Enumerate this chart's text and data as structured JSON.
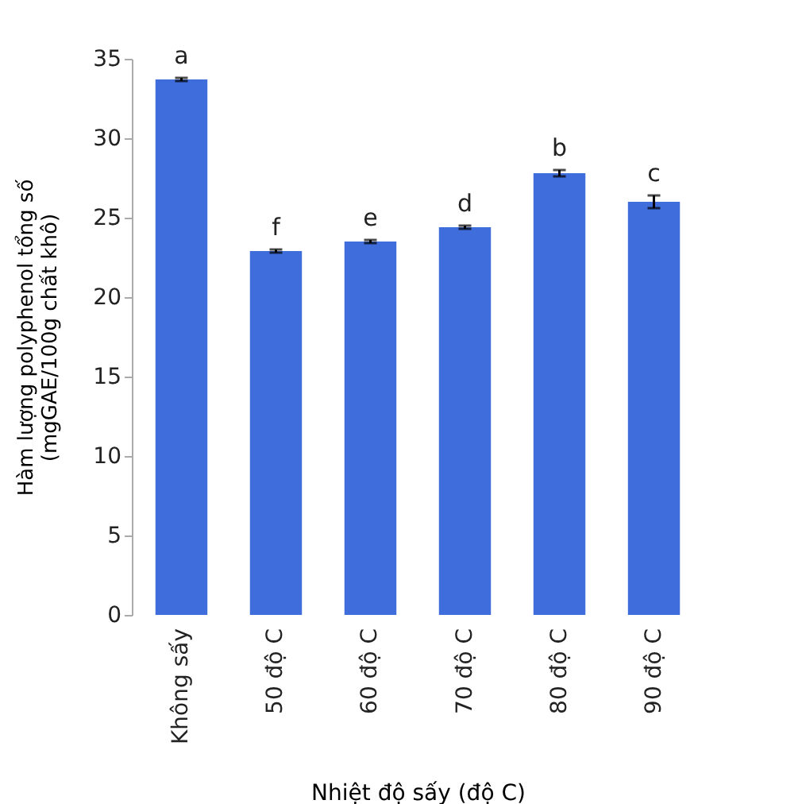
{
  "chart_data": {
    "type": "bar",
    "xlabel": "Nhiệt độ sấy (độ C)",
    "ylabel": [
      "Hàm lượng polyphenol tổng số",
      "(mgGAE/100g chất khô)"
    ],
    "categories": [
      "Không sấy",
      "50 độ C",
      "60 độ C",
      "70 độ C",
      "80 độ C",
      "90 độ C"
    ],
    "values": [
      33.7,
      22.9,
      23.5,
      24.4,
      27.8,
      26.0
    ],
    "errors": [
      0.1,
      0.1,
      0.1,
      0.1,
      0.2,
      0.4
    ],
    "color": "#3f6ddb",
    "ylim": [
      0,
      35
    ],
    "yticks": [
      0,
      5,
      10,
      15,
      20,
      25,
      30,
      35
    ],
    "annotations": [
      {
        "text": "a",
        "x": "Không sấy",
        "y": 33.8
      },
      {
        "text": "f",
        "x": "50 độ C",
        "y": 23.0
      },
      {
        "text": "e",
        "x": "60 độ C",
        "y": 23.6
      },
      {
        "text": "d",
        "x": "70 độ C",
        "y": 24.5
      },
      {
        "text": "b",
        "x": "80 độ C",
        "y": 28.0
      },
      {
        "text": "c",
        "x": "90 độ C",
        "y": 26.4
      }
    ]
  }
}
